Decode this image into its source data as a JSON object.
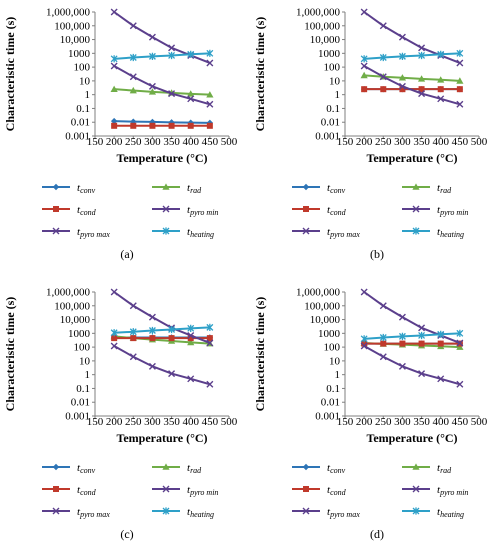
{
  "chart_data": [
    {
      "type": "line",
      "panel_label": "(a)",
      "xlabel": "Temperature (°C)",
      "ylabel": "Characteristic time (s)",
      "xlim": [
        150,
        500
      ],
      "ylim": [
        0.001,
        1000000
      ],
      "yscale": "log",
      "x_ticks": [
        "150",
        "200",
        "250",
        "300",
        "350",
        "400",
        "450",
        "500"
      ],
      "y_ticks": [
        "0.001",
        "0.01",
        "0.1",
        "1",
        "10",
        "100",
        "1000",
        "10,000",
        "100,000",
        "1,000,000"
      ],
      "grid": false,
      "legend_position": "bottom",
      "x": [
        200,
        250,
        300,
        350,
        400,
        450
      ],
      "series": [
        {
          "name": "t",
          "subscript": "conv",
          "color": "#2e75b6",
          "marker": "diamond",
          "values": [
            0.012,
            0.011,
            0.0105,
            0.0098,
            0.0093,
            0.009
          ]
        },
        {
          "name": "t",
          "subscript": "rad",
          "color": "#70ad47",
          "marker": "triangle",
          "values": [
            2.5,
            2.0,
            1.6,
            1.35,
            1.15,
            1.0
          ]
        },
        {
          "name": "t",
          "subscript": "cond",
          "color": "#c0392b",
          "marker": "square",
          "values": [
            0.0055,
            0.0055,
            0.0055,
            0.0055,
            0.0055,
            0.0055
          ]
        },
        {
          "name": "t",
          "subscript": "pyro min",
          "color": "#5b3f8c",
          "marker": "x",
          "values": [
            120,
            20,
            4,
            1.2,
            0.5,
            0.2
          ]
        },
        {
          "name": "t",
          "subscript": "pyro max",
          "color": "#5b3f8c",
          "marker": "x",
          "values": [
            1000000,
            100000,
            15000,
            2500,
            700,
            200
          ]
        },
        {
          "name": "t",
          "subscript": "heating",
          "color": "#2ea0c8",
          "marker": "star",
          "values": [
            400,
            500,
            600,
            700,
            850,
            1000
          ]
        }
      ]
    },
    {
      "type": "line",
      "panel_label": "(b)",
      "xlabel": "Temperature (°C)",
      "ylabel": "Characteristic time (s)",
      "xlim": [
        150,
        500
      ],
      "ylim": [
        0.001,
        1000000
      ],
      "yscale": "log",
      "x_ticks": [
        "150",
        "200",
        "250",
        "300",
        "350",
        "400",
        "450",
        "500"
      ],
      "y_ticks": [
        "0.001",
        "0.01",
        "0.1",
        "1",
        "10",
        "100",
        "1000",
        "10,000",
        "100,000",
        "1,000,000"
      ],
      "grid": false,
      "legend_position": "bottom",
      "x": [
        200,
        250,
        300,
        350,
        400,
        450
      ],
      "series": [
        {
          "name": "t",
          "subscript": "conv",
          "color": "#2e75b6",
          "marker": "diamond",
          "values": [
            2.5,
            2.5,
            2.5,
            2.5,
            2.5,
            2.5
          ]
        },
        {
          "name": "t",
          "subscript": "rad",
          "color": "#70ad47",
          "marker": "triangle",
          "values": [
            25,
            20,
            17,
            14,
            12,
            10
          ]
        },
        {
          "name": "t",
          "subscript": "cond",
          "color": "#c0392b",
          "marker": "square",
          "values": [
            2.5,
            2.5,
            2.5,
            2.5,
            2.5,
            2.5
          ]
        },
        {
          "name": "t",
          "subscript": "pyro min",
          "color": "#5b3f8c",
          "marker": "x",
          "values": [
            120,
            20,
            4,
            1.2,
            0.5,
            0.2
          ]
        },
        {
          "name": "t",
          "subscript": "pyro max",
          "color": "#5b3f8c",
          "marker": "x",
          "values": [
            1000000,
            100000,
            15000,
            2500,
            700,
            200
          ]
        },
        {
          "name": "t",
          "subscript": "heating",
          "color": "#2ea0c8",
          "marker": "star",
          "values": [
            400,
            500,
            600,
            700,
            850,
            1000
          ]
        }
      ]
    },
    {
      "type": "line",
      "panel_label": "(c)",
      "xlabel": "Temperature (°C)",
      "ylabel": "Characteristic time (s)",
      "xlim": [
        150,
        500
      ],
      "ylim": [
        0.001,
        1000000
      ],
      "yscale": "log",
      "x_ticks": [
        "150",
        "200",
        "250",
        "300",
        "350",
        "400",
        "450",
        "500"
      ],
      "y_ticks": [
        "0.001",
        "0.01",
        "0.1",
        "1",
        "10",
        "100",
        "1000",
        "10,000",
        "100,000",
        "1,000,000"
      ],
      "grid": false,
      "legend_position": "bottom",
      "x": [
        200,
        250,
        300,
        350,
        400,
        450
      ],
      "series": [
        {
          "name": "t",
          "subscript": "conv",
          "color": "#2e75b6",
          "marker": "diamond",
          "values": [
            500,
            500,
            500,
            500,
            500,
            500
          ]
        },
        {
          "name": "t",
          "subscript": "rad",
          "color": "#70ad47",
          "marker": "triangle",
          "values": [
            600,
            450,
            350,
            280,
            220,
            180
          ]
        },
        {
          "name": "t",
          "subscript": "cond",
          "color": "#c0392b",
          "marker": "square",
          "values": [
            450,
            450,
            450,
            450,
            450,
            450
          ]
        },
        {
          "name": "t",
          "subscript": "pyro min",
          "color": "#5b3f8c",
          "marker": "x",
          "values": [
            120,
            20,
            4,
            1.2,
            0.5,
            0.2
          ]
        },
        {
          "name": "t",
          "subscript": "pyro max",
          "color": "#5b3f8c",
          "marker": "x",
          "values": [
            1000000,
            100000,
            15000,
            2500,
            700,
            200
          ]
        },
        {
          "name": "t",
          "subscript": "heating",
          "color": "#2ea0c8",
          "marker": "star",
          "values": [
            1100,
            1300,
            1600,
            1900,
            2300,
            2700
          ]
        }
      ]
    },
    {
      "type": "line",
      "panel_label": "(d)",
      "xlabel": "Temperature (°C)",
      "ylabel": "Characteristic time (s)",
      "xlim": [
        150,
        500
      ],
      "ylim": [
        0.001,
        1000000
      ],
      "yscale": "log",
      "x_ticks": [
        "150",
        "200",
        "250",
        "300",
        "350",
        "400",
        "450",
        "500"
      ],
      "y_ticks": [
        "0.001",
        "0.01",
        "0.1",
        "1",
        "10",
        "100",
        "1000",
        "10,000",
        "100,000",
        "1,000,000"
      ],
      "grid": false,
      "legend_position": "bottom",
      "x": [
        200,
        250,
        300,
        350,
        400,
        450
      ],
      "series": [
        {
          "name": "t",
          "subscript": "conv",
          "color": "#2e75b6",
          "marker": "diamond",
          "values": [
            180,
            180,
            180,
            180,
            180,
            180
          ]
        },
        {
          "name": "t",
          "subscript": "rad",
          "color": "#70ad47",
          "marker": "triangle",
          "values": [
            200,
            170,
            150,
            130,
            115,
            100
          ]
        },
        {
          "name": "t",
          "subscript": "cond",
          "color": "#c0392b",
          "marker": "square",
          "values": [
            180,
            180,
            180,
            180,
            180,
            180
          ]
        },
        {
          "name": "t",
          "subscript": "pyro min",
          "color": "#5b3f8c",
          "marker": "x",
          "values": [
            120,
            20,
            4,
            1.2,
            0.5,
            0.2
          ]
        },
        {
          "name": "t",
          "subscript": "pyro max",
          "color": "#5b3f8c",
          "marker": "x",
          "values": [
            1000000,
            100000,
            15000,
            2500,
            700,
            200
          ]
        },
        {
          "name": "t",
          "subscript": "heating",
          "color": "#2ea0c8",
          "marker": "star",
          "values": [
            400,
            500,
            600,
            700,
            850,
            1000
          ]
        }
      ]
    }
  ]
}
